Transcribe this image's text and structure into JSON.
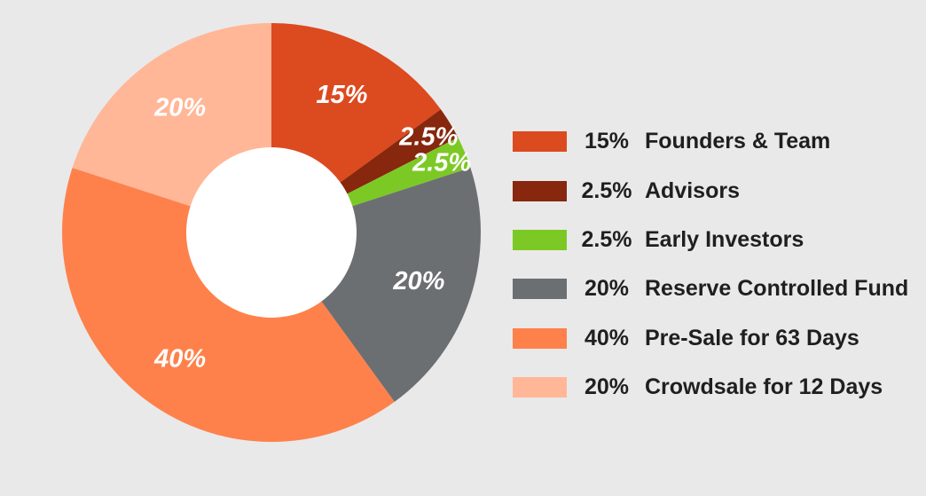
{
  "chart_data": {
    "type": "pie",
    "donut": true,
    "slices": [
      {
        "label": "Founders & Team",
        "value": 15,
        "display": "15%",
        "legend_pct": "15%",
        "color": "#dc4a1f"
      },
      {
        "label": "Advisors",
        "value": 2.5,
        "display": "2.5%",
        "legend_pct": "2.5%",
        "color": "#86270e"
      },
      {
        "label": "Early Investors",
        "value": 2.5,
        "display": "2.5%",
        "legend_pct": "2.5%",
        "color": "#7cc925"
      },
      {
        "label": "Reserve Controlled Fund",
        "value": 20,
        "display": "20%",
        "legend_pct": "20%",
        "color": "#6c6f72"
      },
      {
        "label": "Pre-Sale for 63 Days",
        "value": 40,
        "display": "40%",
        "legend_pct": "40%",
        "color": "#fe814b"
      },
      {
        "label": "Crowdsale for 12 Days",
        "value": 20,
        "display": "20%",
        "legend_pct": "20%",
        "color": "#ffb797"
      }
    ],
    "legend_position": "right"
  }
}
